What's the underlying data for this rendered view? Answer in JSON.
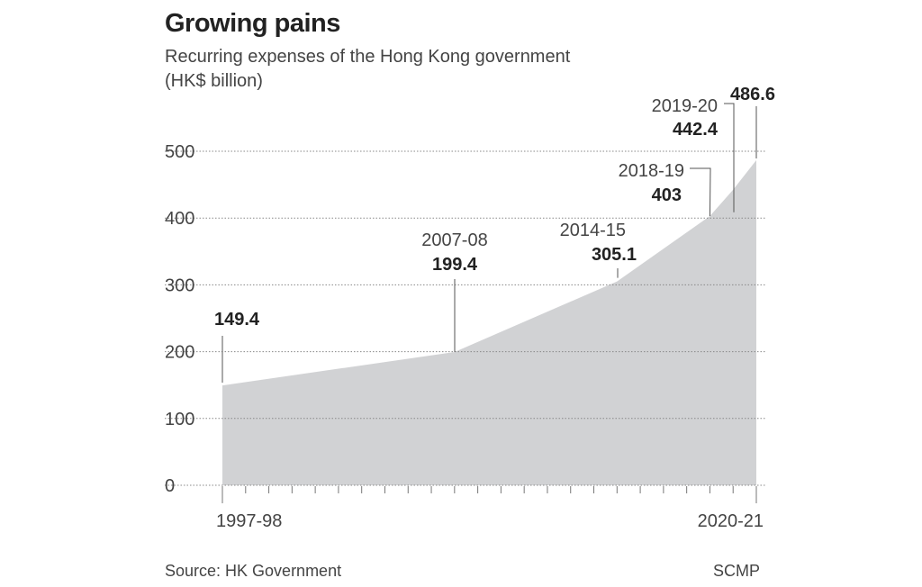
{
  "chart_data": {
    "type": "area",
    "title": "Growing pains",
    "subtitle": "Recurring expenses of the Hong Kong government",
    "unit": "(HK$ billion)",
    "x_start": "1997-98",
    "x_end": "2020-21",
    "x_tick_labels": [
      "1997-98",
      "2020-21"
    ],
    "yticks": [
      0,
      100,
      200,
      300,
      400,
      500
    ],
    "ylim": [
      0,
      500
    ],
    "grid": true,
    "fill_color": "#d1d2d4",
    "points": [
      {
        "year": "1997-98",
        "value": 149.4
      },
      {
        "year": "2007-08",
        "value": 199.4
      },
      {
        "year": "2014-15",
        "value": 305.1
      },
      {
        "year": "2018-19",
        "value": 403
      },
      {
        "year": "2019-20",
        "value": 442.4
      },
      {
        "year": "2020-21",
        "value": 486.6
      }
    ],
    "annotations": [
      {
        "year": "",
        "value": "149.4"
      },
      {
        "year": "2007-08",
        "value": "199.4"
      },
      {
        "year": "2014-15",
        "value": "305.1"
      },
      {
        "year": "2018-19",
        "value": "403"
      },
      {
        "year": "2019-20",
        "value": "442.4"
      },
      {
        "year": "",
        "value": "486.6"
      }
    ]
  },
  "source": "Source: HK Government",
  "credit": "SCMP"
}
